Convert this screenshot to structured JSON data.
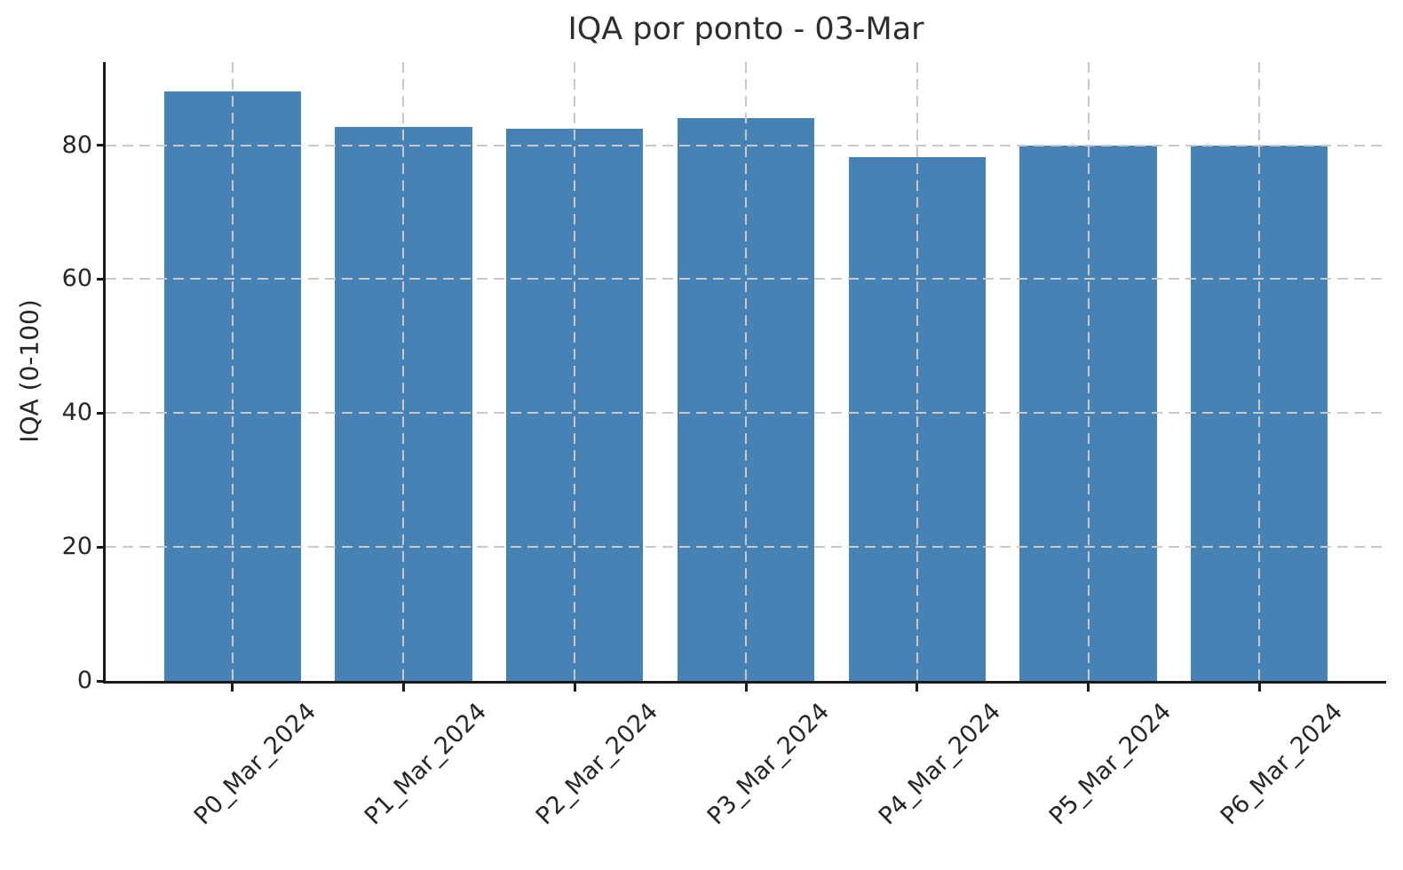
{
  "chart_data": {
    "type": "bar",
    "title": "IQA por ponto - 03-Mar",
    "xlabel": "",
    "ylabel": "IQA (0-100)",
    "categories": [
      "P0_Mar_2024",
      "P1_Mar_2024",
      "P2_Mar_2024",
      "P3_Mar_2024",
      "P4_Mar_2024",
      "P5_Mar_2024",
      "P6_Mar_2024"
    ],
    "values": [
      88.0,
      82.7,
      82.4,
      84.1,
      78.2,
      80.0,
      79.9
    ],
    "yticks": [
      0,
      20,
      40,
      60,
      80
    ],
    "ylim": [
      0,
      92.4
    ],
    "x_tick_rotation_deg": 45,
    "grid": true,
    "grid_style": "dashed",
    "grid_above_bars": true,
    "legend": null,
    "colors": {
      "bar": "#4682b4",
      "grid": "#c9c9c9",
      "axis": "#1a1a1a",
      "tick_label": "#262626",
      "title": "#2e2e2e",
      "background": "#ffffff"
    }
  }
}
